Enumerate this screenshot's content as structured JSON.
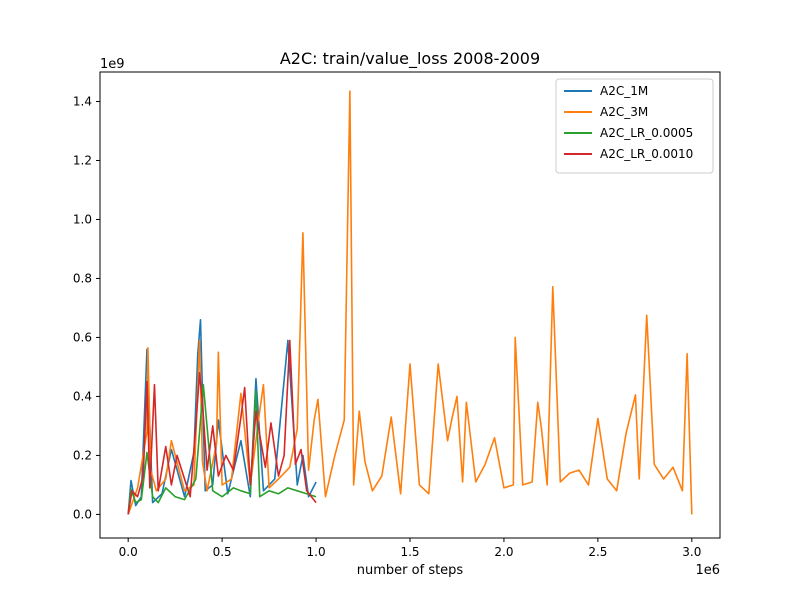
{
  "chart_data": {
    "type": "line",
    "title": "A2C: train/value_loss 2008-2009",
    "xlabel": "number of steps",
    "ylabel": "",
    "x_offset_label": "1e6",
    "y_offset_label": "1e9",
    "xlim": [
      -150000,
      3150000
    ],
    "ylim": [
      -80000000,
      1500000000
    ],
    "x_ticks": [
      0,
      500000,
      1000000,
      1500000,
      2000000,
      2500000,
      3000000
    ],
    "x_tick_labels": [
      "0.0",
      "0.5",
      "1.0",
      "1.5",
      "2.0",
      "2.5",
      "3.0"
    ],
    "y_ticks": [
      0,
      200000000,
      400000000,
      600000000,
      800000000,
      1000000000,
      1200000000,
      1400000000
    ],
    "y_tick_labels": [
      "0.0",
      "0.2",
      "0.4",
      "0.6",
      "0.8",
      "1.0",
      "1.2",
      "1.4"
    ],
    "grid": false,
    "legend_position": "top-right",
    "series": [
      {
        "name": "A2C_1M",
        "color": "#1f77b4",
        "x": [
          0,
          15000,
          40000,
          70000,
          100000,
          130000,
          180000,
          230000,
          300000,
          350000,
          370000,
          385000,
          395000,
          410000,
          450000,
          480000,
          530000,
          600000,
          650000,
          680000,
          720000,
          780000,
          850000,
          900000,
          930000,
          960000,
          1000000
        ],
        "y": [
          0,
          115000000,
          30000000,
          60000000,
          560000000,
          40000000,
          70000000,
          220000000,
          60000000,
          210000000,
          540000000,
          660000000,
          420000000,
          80000000,
          100000000,
          320000000,
          70000000,
          250000000,
          60000000,
          460000000,
          80000000,
          120000000,
          590000000,
          100000000,
          200000000,
          60000000,
          110000000
        ]
      },
      {
        "name": "A2C_3M",
        "color": "#ff7f0e",
        "x": [
          0,
          50000,
          100000,
          105000,
          120000,
          150000,
          200000,
          230000,
          300000,
          350000,
          380000,
          395000,
          420000,
          470000,
          480000,
          500000,
          550000,
          600000,
          650000,
          700000,
          720000,
          750000,
          800000,
          860000,
          900000,
          930000,
          960000,
          990000,
          1010000,
          1050000,
          1100000,
          1150000,
          1180000,
          1200000,
          1230000,
          1260000,
          1300000,
          1350000,
          1400000,
          1450000,
          1500000,
          1550000,
          1600000,
          1650000,
          1700000,
          1725000,
          1750000,
          1780000,
          1800000,
          1850000,
          1900000,
          1950000,
          2000000,
          2050000,
          2060000,
          2100000,
          2150000,
          2180000,
          2200000,
          2230000,
          2260000,
          2300000,
          2350000,
          2400000,
          2450000,
          2500000,
          2550000,
          2600000,
          2650000,
          2700000,
          2720000,
          2760000,
          2800000,
          2850000,
          2900000,
          2950000,
          2975000,
          3000000
        ],
        "y": [
          0,
          90000000,
          280000000,
          565000000,
          150000000,
          80000000,
          120000000,
          250000000,
          80000000,
          100000000,
          590000000,
          180000000,
          80000000,
          240000000,
          550000000,
          100000000,
          120000000,
          410000000,
          100000000,
          350000000,
          440000000,
          90000000,
          120000000,
          160000000,
          290000000,
          955000000,
          150000000,
          320000000,
          390000000,
          60000000,
          200000000,
          320000000,
          1435000000,
          100000000,
          350000000,
          180000000,
          80000000,
          130000000,
          330000000,
          70000000,
          510000000,
          100000000,
          70000000,
          510000000,
          250000000,
          330000000,
          400000000,
          110000000,
          380000000,
          110000000,
          170000000,
          260000000,
          90000000,
          100000000,
          600000000,
          100000000,
          110000000,
          380000000,
          290000000,
          100000000,
          772000000,
          110000000,
          140000000,
          150000000,
          100000000,
          325000000,
          120000000,
          80000000,
          275000000,
          405000000,
          120000000,
          675000000,
          170000000,
          120000000,
          160000000,
          80000000,
          545000000,
          0
        ]
      },
      {
        "name": "A2C_LR_0.0005",
        "color": "#2ca02c",
        "x": [
          0,
          15000,
          40000,
          70000,
          100000,
          130000,
          160000,
          200000,
          250000,
          300000,
          360000,
          400000,
          450000,
          500000,
          560000,
          600000,
          650000,
          680000,
          700000,
          750000,
          800000,
          850000,
          900000,
          950000,
          1000000
        ],
        "y": [
          0,
          85000000,
          40000000,
          50000000,
          210000000,
          60000000,
          40000000,
          90000000,
          60000000,
          50000000,
          120000000,
          440000000,
          80000000,
          60000000,
          90000000,
          80000000,
          70000000,
          420000000,
          60000000,
          80000000,
          70000000,
          90000000,
          80000000,
          70000000,
          60000000
        ]
      },
      {
        "name": "A2C_LR_0.0010",
        "color": "#d62728",
        "x": [
          0,
          20000,
          50000,
          80000,
          100000,
          115000,
          140000,
          160000,
          200000,
          230000,
          260000,
          300000,
          330000,
          360000,
          380000,
          395000,
          420000,
          450000,
          480000,
          520000,
          560000,
          600000,
          620000,
          650000,
          680000,
          700000,
          730000,
          760000,
          800000,
          830000,
          860000,
          890000,
          920000,
          950000,
          1000000
        ],
        "y": [
          0,
          80000000,
          60000000,
          130000000,
          450000000,
          90000000,
          440000000,
          80000000,
          230000000,
          100000000,
          200000000,
          120000000,
          60000000,
          300000000,
          480000000,
          380000000,
          150000000,
          300000000,
          130000000,
          200000000,
          150000000,
          330000000,
          430000000,
          100000000,
          350000000,
          270000000,
          160000000,
          310000000,
          130000000,
          200000000,
          590000000,
          170000000,
          220000000,
          80000000,
          40000000
        ]
      }
    ]
  }
}
